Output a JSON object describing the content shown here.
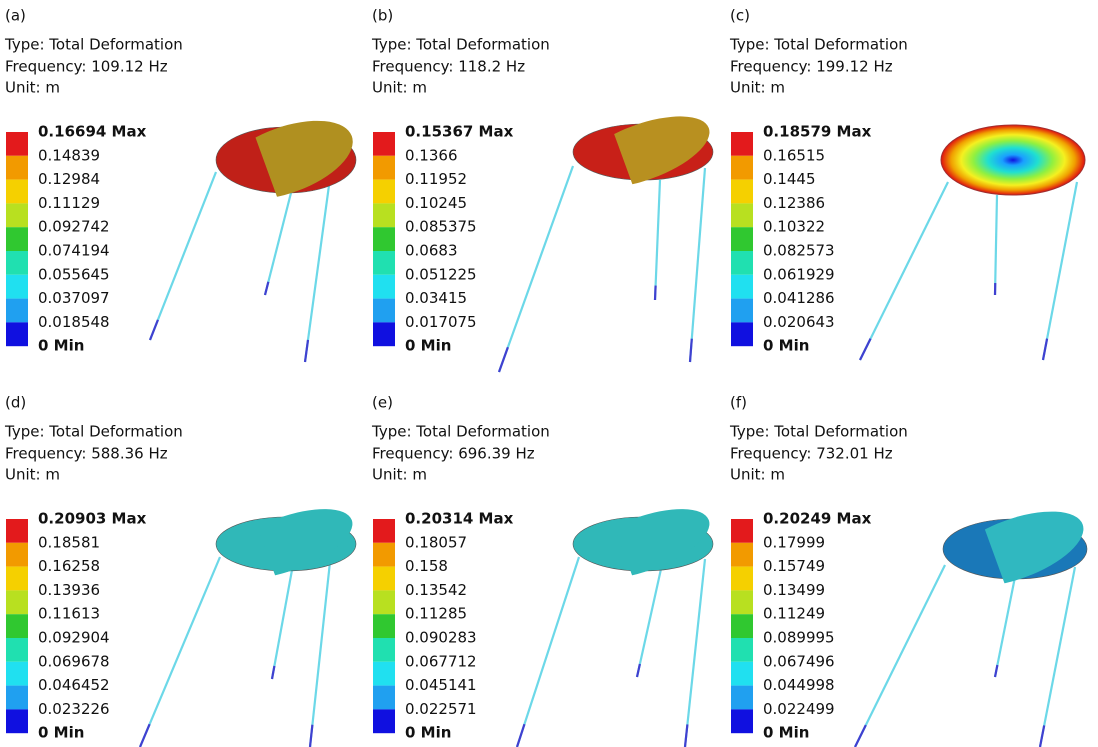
{
  "panels": [
    {
      "label": "(a)",
      "type": "Type: Total Deformation",
      "frequency": "Frequency: 109.12 Hz",
      "unit": "Unit: m",
      "legend": [
        "0.16694 Max",
        "0.14839",
        "0.12984",
        "0.11129",
        "0.092742",
        "0.074194",
        "0.055645",
        "0.037097",
        "0.018548",
        "0 Min"
      ]
    },
    {
      "label": "(b)",
      "type": "Type: Total Deformation",
      "frequency": "Frequency: 118.2 Hz",
      "unit": "Unit: m",
      "legend": [
        "0.15367 Max",
        "0.1366",
        "0.11952",
        "0.10245",
        "0.085375",
        "0.0683",
        "0.051225",
        "0.03415",
        "0.017075",
        "0 Min"
      ]
    },
    {
      "label": "(c)",
      "type": "Type: Total Deformation",
      "frequency": "Frequency: 199.12 Hz",
      "unit": "Unit: m",
      "legend": [
        "0.18579 Max",
        "0.16515",
        "0.1445",
        "0.12386",
        "0.10322",
        "0.082573",
        "0.061929",
        "0.041286",
        "0.020643",
        "0 Min"
      ]
    },
    {
      "label": "(d)",
      "type": "Type: Total Deformation",
      "frequency": "Frequency: 588.36 Hz",
      "unit": "Unit: m",
      "legend": [
        "0.20903 Max",
        "0.18581",
        "0.16258",
        "0.13936",
        "0.11613",
        "0.092904",
        "0.069678",
        "0.046452",
        "0.023226",
        "0 Min"
      ]
    },
    {
      "label": "(e)",
      "type": "Type: Total Deformation",
      "frequency": "Frequency: 696.39 Hz",
      "unit": "Unit: m",
      "legend": [
        "0.20314 Max",
        "0.18057",
        "0.158",
        "0.13542",
        "0.11285",
        "0.090283",
        "0.067712",
        "0.045141",
        "0.022571",
        "0 Min"
      ]
    },
    {
      "label": "(f)",
      "type": "Type: Total Deformation",
      "frequency": "Frequency: 732.01 Hz",
      "unit": "Unit: m",
      "legend": [
        "0.20249 Max",
        "0.17999",
        "0.15749",
        "0.13499",
        "0.11249",
        "0.089995",
        "0.067496",
        "0.044998",
        "0.022499",
        "0 Min"
      ]
    }
  ]
}
